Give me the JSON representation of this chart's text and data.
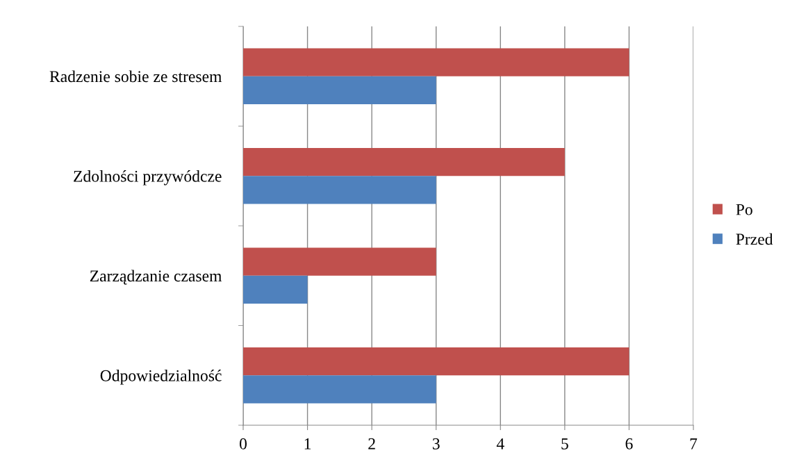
{
  "chart_data": {
    "type": "bar",
    "orientation": "horizontal",
    "categories": [
      "Radzenie sobie ze stresem",
      "Zdolności przywódcze",
      "Zarządzanie czasem",
      "Odpowiedzialność"
    ],
    "series": [
      {
        "name": "Po",
        "color": "#c0504d",
        "values": [
          6,
          5,
          3,
          6
        ]
      },
      {
        "name": "Przed",
        "color": "#4f81bd",
        "values": [
          3,
          3,
          1,
          3
        ]
      }
    ],
    "xlim": [
      0,
      7
    ],
    "xticks": [
      0,
      1,
      2,
      3,
      4,
      5,
      6,
      7
    ],
    "grid": "x",
    "legend": "right"
  }
}
